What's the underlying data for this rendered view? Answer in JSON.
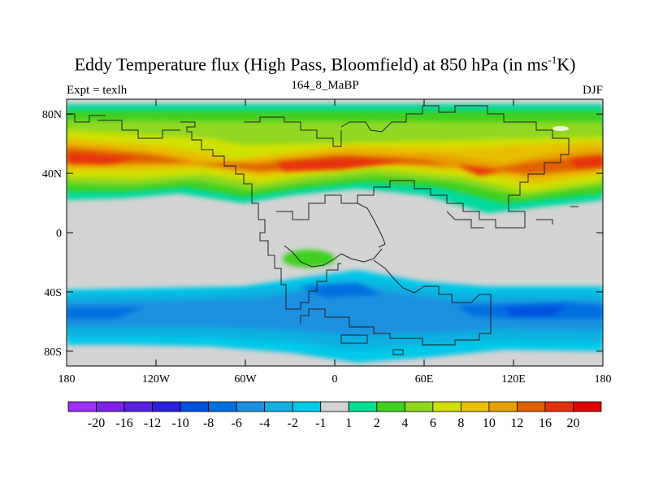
{
  "title": {
    "main": "Eddy Temperature flux (High Pass, Bloomfield) at 850 hPa (in ms",
    "sup": "-1",
    "tail": "K)"
  },
  "labels": {
    "left": "Expt = texlh",
    "center": "164_8_MaBP",
    "right": "DJF"
  },
  "map": {
    "land_fill": "#d3d3d3",
    "lat_ticks": [
      "80N",
      "40N",
      "0",
      "40S",
      "80S"
    ],
    "lon_ticks": [
      "180",
      "120W",
      "60W",
      "0",
      "60E",
      "120E",
      "180"
    ]
  },
  "colorbar": {
    "labels": [
      "-20",
      "-16",
      "-12",
      "-10",
      "-8",
      "-6",
      "-4",
      "-2",
      "-1",
      "1",
      "2",
      "4",
      "6",
      "8",
      "10",
      "12",
      "16",
      "20"
    ],
    "colors": [
      "#9b30ff",
      "#7b22e8",
      "#5a1fe0",
      "#2b1fe0",
      "#0050e0",
      "#0070e0",
      "#1a90e0",
      "#10b0e0",
      "#00c8e8",
      "#d3d3d3",
      "#00e090",
      "#40d020",
      "#90d820",
      "#d0e000",
      "#e8c000",
      "#e8a000",
      "#e06000",
      "#e83010",
      "#e00000"
    ]
  }
}
